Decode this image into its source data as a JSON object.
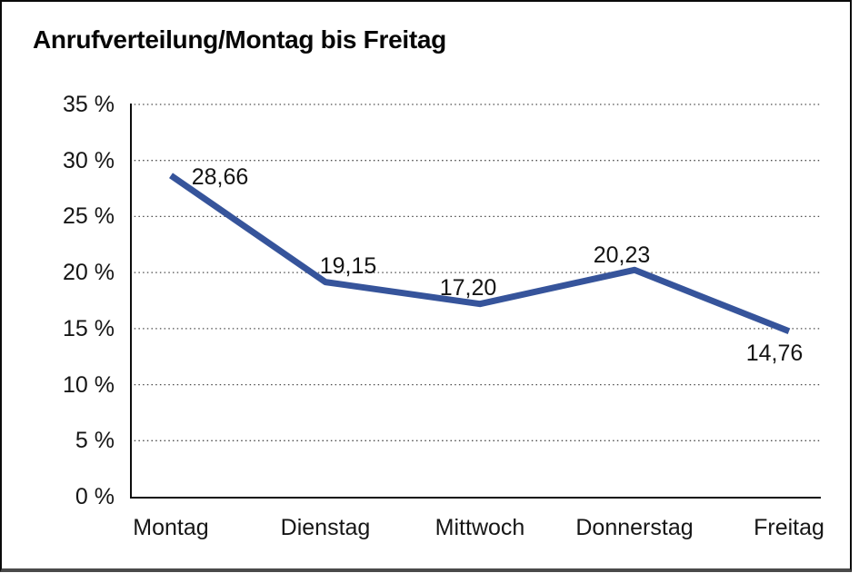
{
  "title": "Anrufverteilung/Montag bis Freitag",
  "chart_data": {
    "type": "line",
    "title": "Anrufverteilung/Montag bis Freitag",
    "categories": [
      "Montag",
      "Dienstag",
      "Mittwoch",
      "Donnerstag",
      "Freitag"
    ],
    "series": [
      {
        "name": "Anrufverteilung",
        "values": [
          28.66,
          19.15,
          17.2,
          20.23,
          14.76
        ]
      }
    ],
    "point_labels": [
      "28,66",
      "19,15",
      "17,20",
      "20,23",
      "14,76"
    ],
    "y_ticks": [
      {
        "value": 35,
        "label": "35 %"
      },
      {
        "value": 30,
        "label": "30 %"
      },
      {
        "value": 25,
        "label": "25 %"
      },
      {
        "value": 20,
        "label": "20 %"
      },
      {
        "value": 15,
        "label": "15 %"
      },
      {
        "value": 10,
        "label": "10 %"
      },
      {
        "value": 5,
        "label": "5 %"
      },
      {
        "value": 0,
        "label": "0 %"
      }
    ],
    "xlabel": "",
    "ylabel": "",
    "unit": "%",
    "ylim": [
      0,
      35
    ],
    "grid": "horizontal-dotted",
    "legend": "none",
    "line_color": "#36549B",
    "axis_color": "#0d0d0d",
    "grid_color": "#4c4c4c"
  }
}
